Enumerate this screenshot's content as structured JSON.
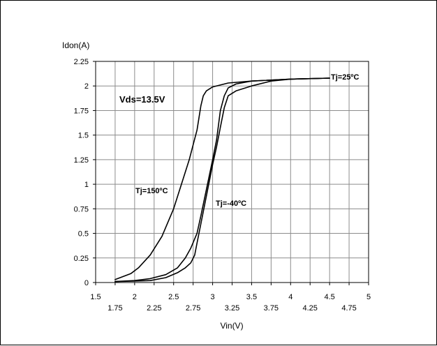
{
  "chart_data": {
    "type": "line",
    "title": "",
    "ylabel": "Idon(A)",
    "xlabel": "Vin(V)",
    "xlim": [
      1.5,
      5
    ],
    "ylim": [
      0,
      2.25
    ],
    "grid": true,
    "x_ticks_major": [
      "1.5",
      "2",
      "2.5",
      "3",
      "3.5",
      "4",
      "4.5",
      "5"
    ],
    "x_ticks_minor": [
      "1.75",
      "2.25",
      "2.75",
      "3.25",
      "3.75",
      "4.25",
      "4.75"
    ],
    "y_ticks": [
      "0",
      "0.25",
      "0.5",
      "0.75",
      "1",
      "1.25",
      "1.5",
      "1.75",
      "2",
      "2.25"
    ],
    "condition_label": "Vds=13.5V",
    "series": [
      {
        "name": "Tj=150ºC",
        "x": [
          1.75,
          1.85,
          1.95,
          2.05,
          2.2,
          2.35,
          2.5,
          2.6,
          2.7,
          2.75,
          2.8,
          2.85,
          2.88,
          2.92,
          3.0,
          3.2,
          3.5,
          4.0,
          4.5
        ],
        "y": [
          0.03,
          0.06,
          0.09,
          0.15,
          0.28,
          0.47,
          0.75,
          1.0,
          1.25,
          1.4,
          1.55,
          1.8,
          1.9,
          1.95,
          1.99,
          2.03,
          2.05,
          2.07,
          2.08
        ]
      },
      {
        "name": "Tj=25ºC",
        "x": [
          1.75,
          2.0,
          2.2,
          2.4,
          2.55,
          2.65,
          2.72,
          2.8,
          2.85,
          2.9,
          2.95,
          3.0,
          3.05,
          3.1,
          3.15,
          3.2,
          3.3,
          3.5,
          4.0,
          4.5
        ],
        "y": [
          0.01,
          0.02,
          0.04,
          0.08,
          0.15,
          0.25,
          0.35,
          0.5,
          0.68,
          0.87,
          1.06,
          1.25,
          1.45,
          1.75,
          1.9,
          1.98,
          2.02,
          2.05,
          2.07,
          2.08
        ]
      },
      {
        "name": "Tj=-40ºC",
        "x": [
          1.75,
          2.0,
          2.2,
          2.4,
          2.55,
          2.65,
          2.72,
          2.77,
          2.8,
          2.85,
          2.9,
          2.95,
          3.0,
          3.05,
          3.1,
          3.15,
          3.2,
          3.3,
          3.5,
          3.75,
          4.0,
          4.5
        ],
        "y": [
          0.01,
          0.015,
          0.02,
          0.05,
          0.1,
          0.15,
          0.2,
          0.28,
          0.4,
          0.6,
          0.8,
          1.0,
          1.2,
          1.38,
          1.58,
          1.78,
          1.9,
          1.95,
          2.0,
          2.05,
          2.07,
          2.08
        ]
      }
    ]
  }
}
